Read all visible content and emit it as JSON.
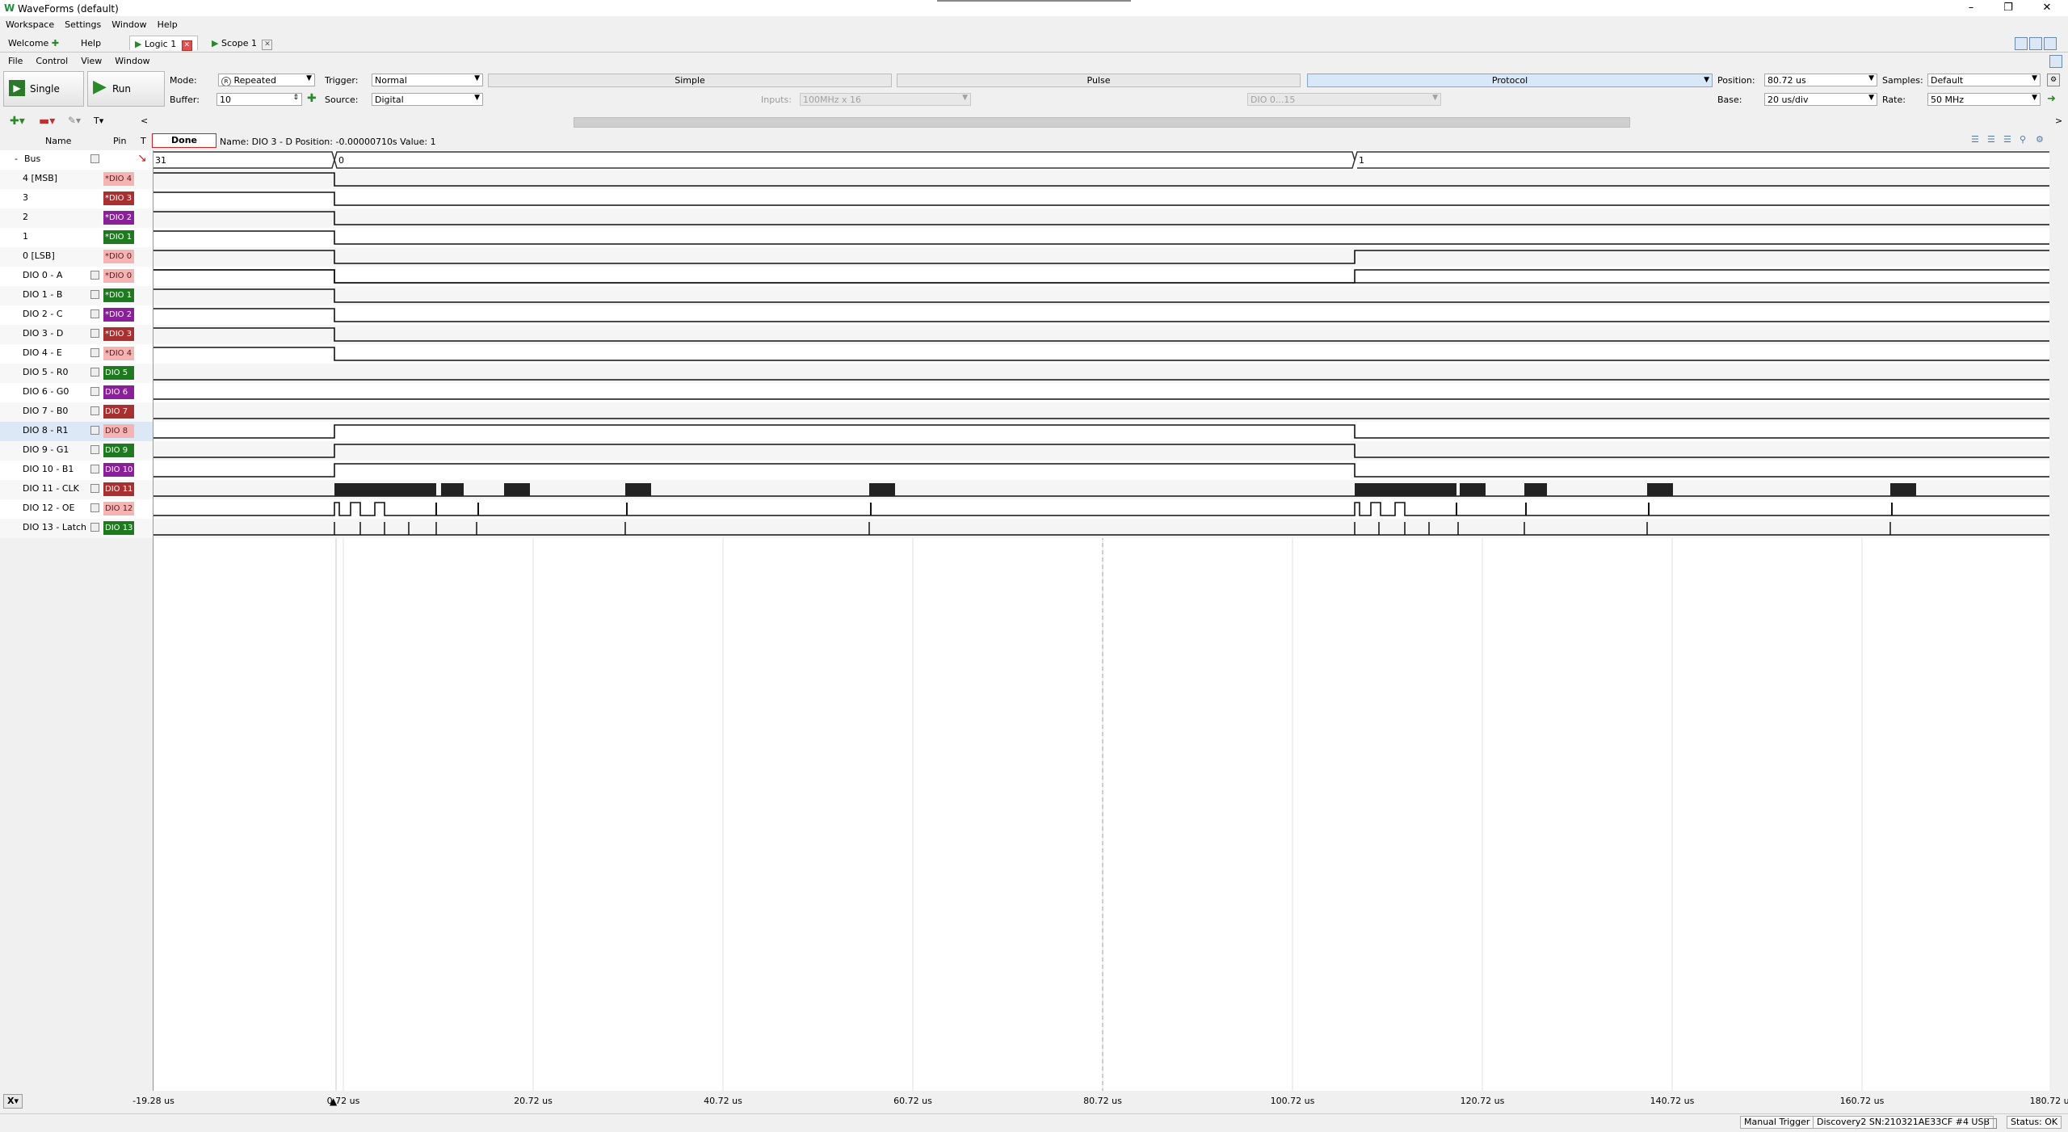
{
  "window": {
    "title": "WaveForms (default)"
  },
  "menu": [
    "Workspace",
    "Settings",
    "Window",
    "Help"
  ],
  "tabs": {
    "welcome": "Welcome",
    "help": "Help",
    "logic": "Logic 1",
    "scope": "Scope 1"
  },
  "submenu": [
    "File",
    "Control",
    "View",
    "Window"
  ],
  "toolbar": {
    "single_label": "Single",
    "run_label": "Run",
    "mode_label": "Mode:",
    "mode_value": "Repeated",
    "buffer_label": "Buffer:",
    "buffer_value": "10",
    "trigger_label": "Trigger:",
    "trigger_value": "Normal",
    "source_label": "Source:",
    "source_value": "Digital",
    "trigger_tabs": [
      "Simple",
      "Pulse",
      "Protocol"
    ],
    "inputs_label": "Inputs:",
    "inputs_value": "100MHz x 16",
    "dio_value": "DIO 0...15",
    "position_label": "Position:",
    "position_value": "80.72 us",
    "base_label": "Base:",
    "base_value": "20 us/div",
    "samples_label": "Samples:",
    "samples_value": "Default",
    "rate_label": "Rate:",
    "rate_value": "50 MHz"
  },
  "panel": {
    "name_header": "Name",
    "pin_header": "Pin",
    "t_header": "T",
    "status": "Done",
    "cursor_info": "Name: DIO 3 - D  Position: -0.00000710s  Value: 1"
  },
  "signals": [
    {
      "name": "Bus",
      "pin": "",
      "pin_color": ""
    },
    {
      "name": "4 [MSB]",
      "pin": "*DIO 4",
      "pin_color": "#f4b4b4"
    },
    {
      "name": "3",
      "pin": "*DIO 3",
      "pin_color": "#a83030"
    },
    {
      "name": "2",
      "pin": "*DIO 2",
      "pin_color": "#8a1f9a"
    },
    {
      "name": "1",
      "pin": "*DIO 1",
      "pin_color": "#1f7a1f"
    },
    {
      "name": "0 [LSB]",
      "pin": "*DIO 0",
      "pin_color": "#f4b4b4"
    },
    {
      "name": "DIO 0 - A",
      "pin": "*DIO 0",
      "pin_color": "#f4b4b4"
    },
    {
      "name": "DIO 1 - B",
      "pin": "*DIO 1",
      "pin_color": "#1f7a1f"
    },
    {
      "name": "DIO 2 - C",
      "pin": "*DIO 2",
      "pin_color": "#8a1f9a"
    },
    {
      "name": "DIO 3 - D",
      "pin": "*DIO 3",
      "pin_color": "#a83030"
    },
    {
      "name": "DIO 4 - E",
      "pin": "*DIO 4",
      "pin_color": "#f4b4b4"
    },
    {
      "name": "DIO 5 - R0",
      "pin": "DIO 5",
      "pin_color": "#1f7a1f"
    },
    {
      "name": "DIO 6 - G0",
      "pin": "DIO 6",
      "pin_color": "#8a1f9a"
    },
    {
      "name": "DIO 7 - B0",
      "pin": "DIO 7",
      "pin_color": "#a83030"
    },
    {
      "name": "DIO 8 - R1",
      "pin": "DIO 8",
      "pin_color": "#f4b4b4"
    },
    {
      "name": "DIO 9 - G1",
      "pin": "DIO 9",
      "pin_color": "#1f7a1f"
    },
    {
      "name": "DIO 10 - B1",
      "pin": "DIO 10",
      "pin_color": "#8a1f9a"
    },
    {
      "name": "DIO 11 - CLK",
      "pin": "DIO 11",
      "pin_color": "#a83030"
    },
    {
      "name": "DIO 12 - OE",
      "pin": "DIO 12",
      "pin_color": "#f4b4b4"
    },
    {
      "name": "DIO 13 - Latch",
      "pin": "DIO 13",
      "pin_color": "#1f7a1f"
    }
  ],
  "bus_values": [
    "31",
    "0",
    "1"
  ],
  "time_axis": [
    "-19.28 us",
    "0.72 us",
    "20.72 us",
    "40.72 us",
    "60.72 us",
    "80.72 us",
    "100.72 us",
    "120.72 us",
    "140.72 us",
    "160.72 us",
    "180.72 us"
  ],
  "status_bar": {
    "trigger": "Manual Trigger",
    "device": "Discovery2 SN:210321AE33CF #4 USB",
    "status": "Status: OK"
  }
}
